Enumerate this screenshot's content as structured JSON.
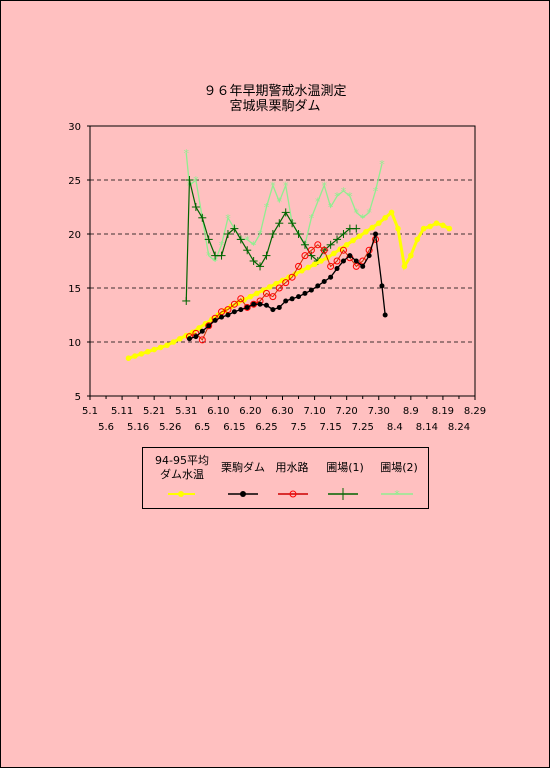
{
  "title": "９６年早期警戒水温測定",
  "subtitle": "宮城県栗駒ダム",
  "colors": {
    "yellow": "#ffff00",
    "black": "#000000",
    "red": "#ff0000",
    "darkgreen": "#006400",
    "lightgreen": "#90ee90",
    "orange": "#ff8c00"
  },
  "chart_data": {
    "type": "line",
    "ylim": [
      5,
      30
    ],
    "yticks": [
      5,
      10,
      15,
      20,
      25,
      30
    ],
    "grid": "horizontal dashed at 15, 20, 25",
    "x_domain": [
      "5.1",
      "8.29"
    ],
    "xticks_row1": [
      "5.1",
      "5.11",
      "5.21",
      "5.31",
      "6.10",
      "6.20",
      "6.30",
      "7.10",
      "7.20",
      "7.30",
      "8.9",
      "8.19",
      "8.29"
    ],
    "xticks_row2": [
      "5.6",
      "5.16",
      "5.26",
      "6.5",
      "6.15",
      "6.25",
      "7.5",
      "7.15",
      "7.25",
      "8.4",
      "8.14",
      "8.24"
    ],
    "legend_placement": "bottom",
    "series": [
      {
        "name": "94-95平均\nダム水温",
        "style": "yellow-dot",
        "x": [
          "5.13",
          "5.15",
          "5.17",
          "5.19",
          "5.21",
          "5.23",
          "5.25",
          "5.27",
          "5.29",
          "5.31",
          "6.2",
          "6.4",
          "6.6",
          "6.8",
          "6.10",
          "6.12",
          "6.14",
          "6.16",
          "6.18",
          "6.20",
          "6.22",
          "6.24",
          "6.26",
          "6.28",
          "6.30",
          "7.2",
          "7.4",
          "7.6",
          "7.8",
          "7.10",
          "7.12",
          "7.14",
          "7.16",
          "7.18",
          "7.20",
          "7.22",
          "7.24",
          "7.26",
          "7.28",
          "7.30",
          "8.1",
          "8.3",
          "8.5",
          "8.7",
          "8.9",
          "8.11",
          "8.13",
          "8.15",
          "8.17",
          "8.19",
          "8.21"
        ],
        "values": [
          8.5,
          8.7,
          8.9,
          9.1,
          9.3,
          9.5,
          9.7,
          10.0,
          10.3,
          10.6,
          10.9,
          11.3,
          11.7,
          12.1,
          12.5,
          12.9,
          13.3,
          13.6,
          13.9,
          14.2,
          14.5,
          14.8,
          15.1,
          15.4,
          15.7,
          16.0,
          16.3,
          16.6,
          16.9,
          17.2,
          17.5,
          17.8,
          18.2,
          18.6,
          19.0,
          19.4,
          19.8,
          20.2,
          20.6,
          21.0,
          21.5,
          22.0,
          20.5,
          17.0,
          18.0,
          19.5,
          20.5,
          20.7,
          21.0,
          20.8,
          20.5
        ]
      },
      {
        "name": "栗駒ダム",
        "style": "black-dot",
        "x": [
          "6.1",
          "6.3",
          "6.5",
          "6.7",
          "6.9",
          "6.11",
          "6.13",
          "6.15",
          "6.17",
          "6.19",
          "6.21",
          "6.23",
          "6.25",
          "6.27",
          "6.29",
          "7.1",
          "7.3",
          "7.5",
          "7.7",
          "7.9",
          "7.11",
          "7.13",
          "7.15",
          "7.17",
          "7.19",
          "7.21",
          "7.23",
          "7.25",
          "7.27",
          "7.29",
          "7.31",
          "8.1"
        ],
        "values": [
          10.3,
          10.5,
          11.0,
          11.5,
          12.0,
          12.3,
          12.5,
          12.8,
          13.0,
          13.2,
          13.5,
          13.5,
          13.4,
          13.0,
          13.2,
          13.8,
          14.0,
          14.2,
          14.5,
          14.8,
          15.2,
          15.6,
          16.0,
          16.8,
          17.5,
          18.0,
          17.5,
          17.0,
          18.0,
          20.0,
          15.2,
          12.5
        ]
      },
      {
        "name": "用水路",
        "style": "red-circle",
        "x": [
          "6.1",
          "6.3",
          "6.5",
          "6.7",
          "6.9",
          "6.11",
          "6.13",
          "6.15",
          "6.17",
          "6.19",
          "6.21",
          "6.23",
          "6.25",
          "6.27",
          "6.29",
          "7.1",
          "7.3",
          "7.5",
          "7.7",
          "7.9",
          "7.11",
          "7.13",
          "7.15",
          "7.17",
          "7.19",
          "7.21",
          "7.23",
          "7.25",
          "7.27",
          "7.29"
        ],
        "values": [
          10.5,
          10.8,
          10.2,
          11.5,
          12.2,
          12.8,
          13.0,
          13.5,
          14.0,
          13.2,
          13.5,
          13.8,
          14.5,
          14.2,
          15.0,
          15.5,
          16.0,
          17.0,
          18.0,
          18.5,
          19.0,
          18.5,
          17.0,
          17.5,
          18.5,
          17.8,
          17.0,
          17.5,
          18.5,
          19.5
        ]
      },
      {
        "name": "圃場(1)",
        "style": "darkgreen-plus",
        "x": [
          "5.31",
          "6.1",
          "6.3",
          "6.5",
          "6.7",
          "6.9",
          "6.11",
          "6.13",
          "6.15",
          "6.17",
          "6.19",
          "6.21",
          "6.23",
          "6.25",
          "6.27",
          "6.29",
          "7.1",
          "7.3",
          "7.5",
          "7.7",
          "7.9",
          "7.11",
          "7.13",
          "7.15",
          "7.17",
          "7.19",
          "7.21",
          "7.23"
        ],
        "values": [
          13.8,
          25.0,
          22.5,
          21.5,
          19.5,
          18.0,
          18.0,
          20.0,
          20.5,
          19.5,
          18.5,
          17.5,
          17.0,
          18.0,
          20.0,
          21.0,
          22.0,
          21.0,
          20.0,
          19.0,
          18.0,
          17.5,
          18.5,
          19.0,
          19.5,
          20.0,
          20.5,
          20.5
        ]
      },
      {
        "name": "圃場(2)",
        "style": "lightgreen-star",
        "x": [
          "5.31",
          "6.1",
          "6.3",
          "6.5",
          "6.7",
          "6.9",
          "6.11",
          "6.13",
          "6.15",
          "6.17",
          "6.19",
          "6.21",
          "6.23",
          "6.25",
          "6.27",
          "6.29",
          "7.1",
          "7.3",
          "7.5",
          "7.7",
          "7.9",
          "7.11",
          "7.13",
          "7.15",
          "7.17",
          "7.19",
          "7.21",
          "7.23",
          "7.25",
          "7.27",
          "7.29",
          "7.31"
        ],
        "values": [
          27.5,
          24.5,
          25.0,
          21.5,
          18.0,
          17.5,
          19.0,
          21.5,
          20.5,
          19.5,
          19.5,
          19.0,
          20.0,
          22.5,
          24.5,
          23.0,
          24.5,
          21.0,
          20.0,
          19.0,
          21.5,
          23.0,
          24.5,
          22.5,
          23.5,
          24.0,
          23.5,
          22.0,
          21.5,
          22.0,
          24.0,
          26.5
        ]
      }
    ]
  }
}
